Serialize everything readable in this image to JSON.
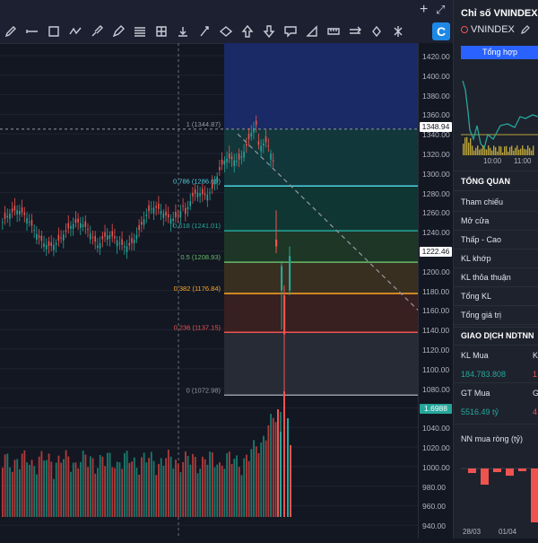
{
  "toolbar": {
    "plus_icon": "+",
    "expand_icon": "⤢",
    "logo_letter": "C",
    "tools": [
      "pencil-icon",
      "line-icon",
      "crop-icon",
      "zigzag-icon",
      "brush-icon",
      "pen-icon",
      "fib-lines-icon",
      "grid-icon",
      "download-icon",
      "pen-nib-icon",
      "circle-icon",
      "arrow-up-icon",
      "arrow-down-icon",
      "comment-icon",
      "measure-icon",
      "ruler-icon",
      "double-arrow-icon",
      "gear-icon",
      "diamond-icon"
    ]
  },
  "price_axis": {
    "ticks": [
      "1420.00",
      "1400.00",
      "1380.00",
      "1360.00",
      "1340.00",
      "1320.00",
      "1300.00",
      "1280.00",
      "1260.00",
      "1240.00",
      "1220.00",
      "1200.00",
      "1180.00",
      "1160.00",
      "1140.00",
      "1120.00",
      "1100.00",
      "1080.00",
      "1060.00",
      "1040.00",
      "1020.00",
      "1000.00",
      "980.00",
      "960.00",
      "940.00"
    ],
    "tag_top": "1348.94",
    "tag_mid": "1222.46",
    "tag_vol": "1.6988"
  },
  "fib": {
    "levels": [
      {
        "ratio": "1",
        "label": "1 (1344.87)",
        "color": "#9598a1"
      },
      {
        "ratio": "0.786",
        "label": "0.786 (1286.69)",
        "color": "#4dd0e1"
      },
      {
        "ratio": "0.618",
        "label": "0.618 (1241.01)",
        "color": "#26a69a"
      },
      {
        "ratio": "0.5",
        "label": "0.5 (1208.93)",
        "color": "#66bb6a"
      },
      {
        "ratio": "0.382",
        "label": "0.382 (1176.84)",
        "color": "#ffa726"
      },
      {
        "ratio": "0.236",
        "label": "0.236 (1137.15)",
        "color": "#ef5350"
      },
      {
        "ratio": "0",
        "label": "0 (1072.98)",
        "color": "#9598a1"
      }
    ]
  },
  "panel": {
    "title": "Chỉ số VNINDEX",
    "symbol": "VNINDEX",
    "tab": "Tổng hợp",
    "mini_times": [
      "10:00",
      "11:00"
    ],
    "overview_title": "TỔNG QUAN",
    "overview_rows": [
      "Tham chiếu",
      "Mở cửa",
      "Thấp - Cao",
      "KL khớp",
      "KL thỏa thuận",
      "Tổng KL",
      "Tổng giá trị"
    ],
    "foreign_title": "GIAO DỊCH NDTNN",
    "kl_mua_label": "KL Mua",
    "kl_ban_label": "K",
    "kl_mua_value": "184.783.808",
    "kl_ban_value": "1",
    "gt_mua_label": "GT Mua",
    "gt_ban_label": "G",
    "gt_mua_value": "5516.49 tỷ",
    "gt_ban_value": "4",
    "nn_title": "NN mua ròng (tỷ)",
    "nn_dates": [
      "28/03",
      "01/04"
    ]
  },
  "colors": {
    "up": "#26a69a",
    "down": "#ef5350",
    "accent": "#2962ff",
    "price_tag": "#ffffff",
    "vol_tag": "#26a69a"
  }
}
